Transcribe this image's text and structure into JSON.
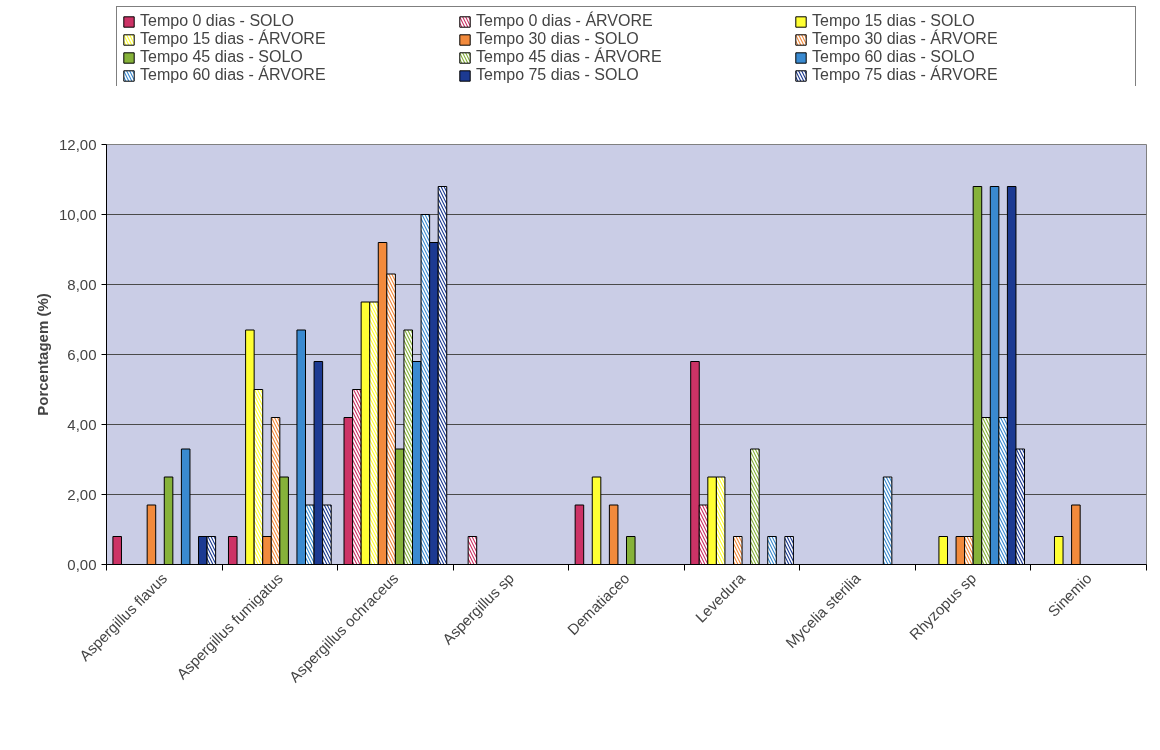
{
  "chart_data": {
    "type": "bar",
    "ylabel": "Porcentagem (%)",
    "categories": [
      "Aspergillus flavus",
      "Aspergillus fumigatus",
      "Aspergillus ochraceus",
      "Aspergillus sp",
      "Dematiaceo",
      "Levedura",
      "Mycelia sterilia",
      "Rhyzopus sp",
      "Sinemio"
    ],
    "series": [
      {
        "name": "Tempo 0 dias - SOLO",
        "color": "#cc3366",
        "values": [
          0.8,
          0.8,
          4.2,
          null,
          1.7,
          5.8,
          null,
          null,
          null
        ]
      },
      {
        "name": "Tempo 0 dias - ÁRVORE",
        "color": "#cc3366",
        "values": [
          null,
          null,
          5.0,
          0.8,
          null,
          1.7,
          null,
          null,
          null
        ]
      },
      {
        "name": "Tempo 15 dias - SOLO",
        "color": "#ffff33",
        "values": [
          null,
          6.7,
          7.5,
          null,
          2.5,
          2.5,
          null,
          0.8,
          0.8
        ]
      },
      {
        "name": "Tempo 15 dias - ÁRVORE",
        "color": "#ffff33",
        "values": [
          null,
          5.0,
          7.5,
          null,
          null,
          2.5,
          null,
          null,
          null
        ]
      },
      {
        "name": "Tempo 30 dias - SOLO",
        "color": "#f28a3c",
        "values": [
          1.7,
          0.8,
          9.2,
          null,
          1.7,
          null,
          null,
          0.8,
          1.7
        ]
      },
      {
        "name": "Tempo 30 dias - ÁRVORE",
        "color": "#f28a3c",
        "values": [
          null,
          4.2,
          8.3,
          null,
          null,
          0.8,
          null,
          0.8,
          null
        ]
      },
      {
        "name": "Tempo 45 dias - SOLO",
        "color": "#86b23a",
        "values": [
          2.5,
          2.5,
          3.3,
          null,
          0.8,
          null,
          null,
          10.8,
          null
        ]
      },
      {
        "name": "Tempo 45 dias - ÁRVORE",
        "color": "#86b23a",
        "values": [
          null,
          null,
          6.7,
          null,
          null,
          3.3,
          null,
          4.2,
          null
        ]
      },
      {
        "name": "Tempo 60 dias - SOLO",
        "color": "#3a8ad0",
        "values": [
          3.3,
          6.7,
          5.8,
          null,
          null,
          null,
          null,
          10.8,
          null
        ]
      },
      {
        "name": "Tempo 60 dias - ÁRVORE",
        "color": "#3a8ad0",
        "values": [
          null,
          1.7,
          10.0,
          null,
          null,
          0.8,
          2.5,
          4.2,
          null
        ]
      },
      {
        "name": "Tempo 75 dias - SOLO",
        "color": "#1c3a92",
        "values": [
          0.8,
          5.8,
          9.2,
          null,
          null,
          null,
          null,
          10.8,
          null
        ]
      },
      {
        "name": "Tempo 75 dias - ÁRVORE",
        "color": "#1c3a92",
        "values": [
          0.8,
          1.7,
          10.8,
          null,
          null,
          0.8,
          null,
          3.3,
          null
        ]
      }
    ],
    "ylim": [
      0,
      12
    ],
    "yticks": [
      {
        "value": 0,
        "label": "0,00"
      },
      {
        "value": 2,
        "label": "2,00"
      },
      {
        "value": 4,
        "label": "4,00"
      },
      {
        "value": 6,
        "label": "6,00"
      },
      {
        "value": 8,
        "label": "8,00"
      },
      {
        "value": 10,
        "label": "10,00"
      },
      {
        "value": 12,
        "label": "12,00"
      }
    ],
    "grid": "y",
    "legend": "top"
  }
}
